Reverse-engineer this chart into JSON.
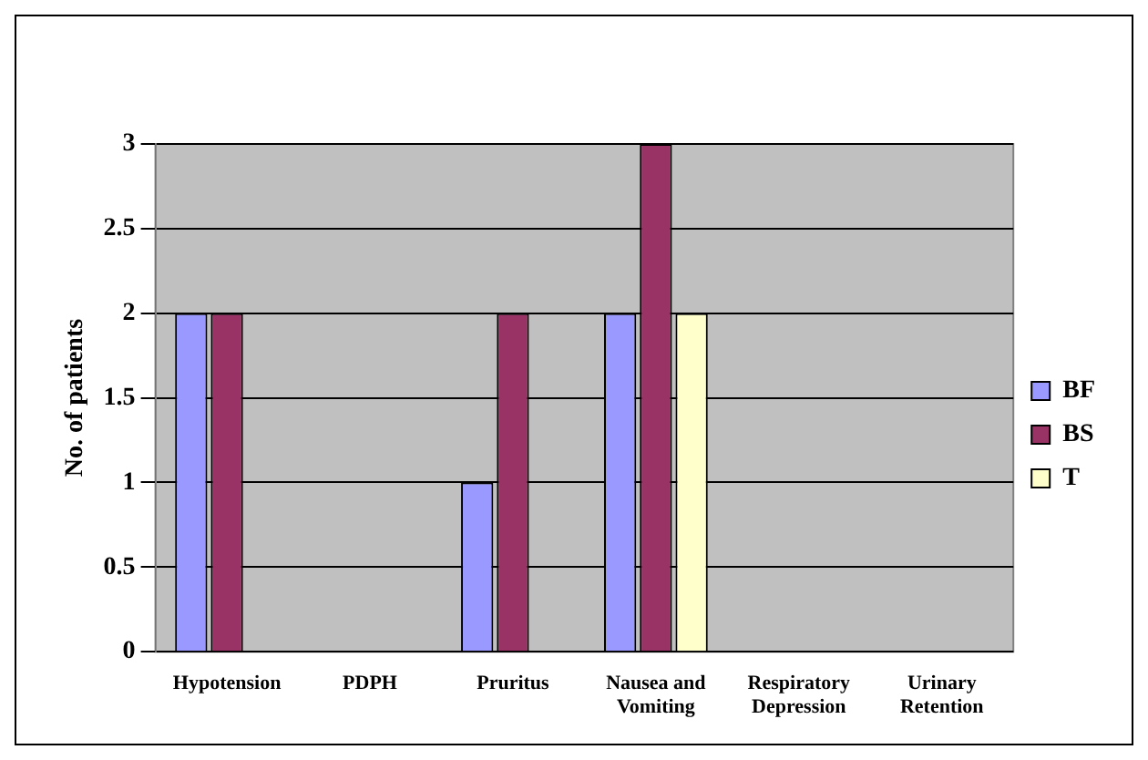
{
  "chart_data": {
    "type": "bar",
    "ylabel": "No. of patients",
    "categories": [
      "Hypotension",
      "PDPH",
      "Pruritus",
      "Nausea and Vomiting",
      "Respiratory Depression",
      "Urinary Retention"
    ],
    "series": [
      {
        "name": "BF",
        "color": "#9999ff",
        "values": [
          2,
          0,
          1,
          2,
          0,
          0
        ]
      },
      {
        "name": "BS",
        "color": "#993366",
        "values": [
          2,
          0,
          2,
          3,
          0,
          0
        ]
      },
      {
        "name": "T",
        "color": "#ffffcc",
        "values": [
          0,
          0,
          0,
          2,
          0,
          0
        ]
      }
    ],
    "ylim": [
      0,
      3
    ],
    "yticks": [
      0,
      0.5,
      1,
      1.5,
      2,
      2.5,
      3
    ],
    "grid": "y",
    "legend": "right"
  }
}
